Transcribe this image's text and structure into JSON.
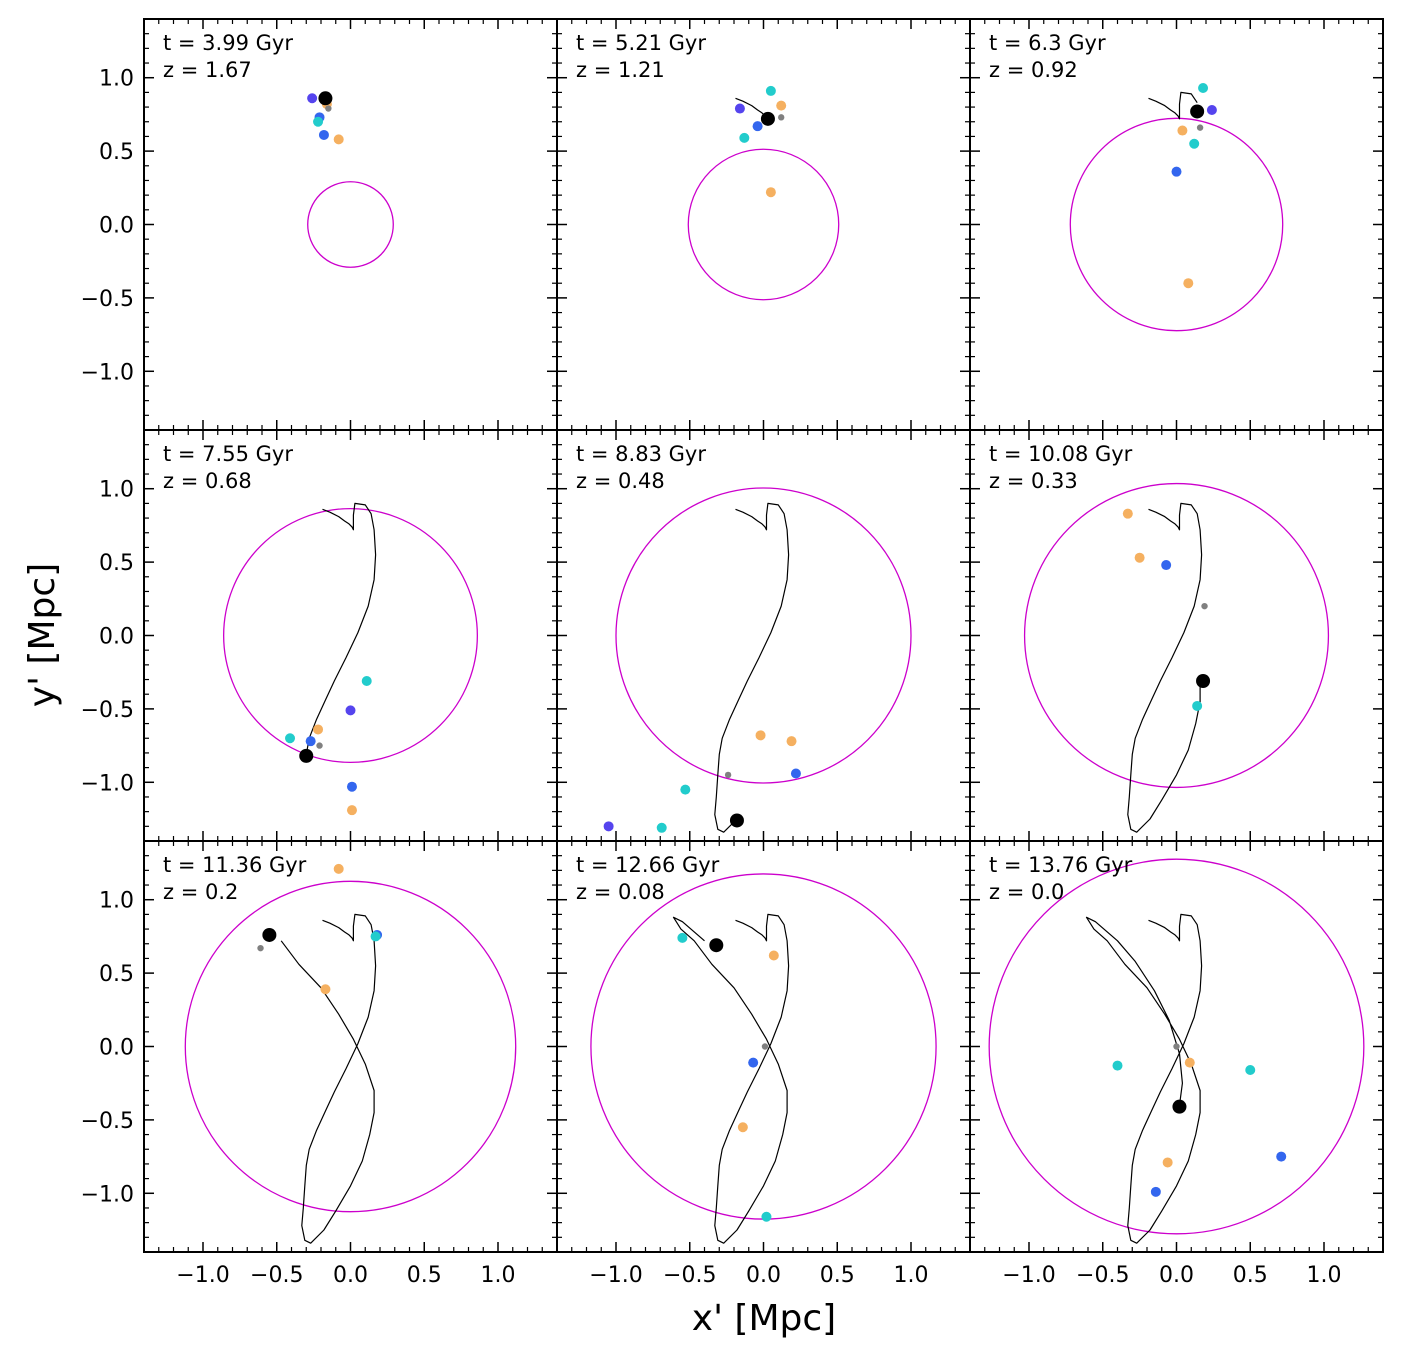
{
  "figure": {
    "x_axis_title": "x' [Mpc]",
    "y_axis_title": "y' [Mpc]"
  },
  "chart_data": {
    "type": "scatter",
    "grid": "3x3 small multiples, shared axes",
    "xlabel": "x' [Mpc]",
    "ylabel": "y' [Mpc]",
    "xlim": [
      -1.4,
      1.4
    ],
    "ylim": [
      -1.4,
      1.4
    ],
    "xticks": [
      -1.0,
      -0.5,
      0.0,
      0.5,
      1.0
    ],
    "yticks": [
      -1.0,
      -0.5,
      0.0,
      0.5,
      1.0
    ],
    "xtick_labels": [
      "−1.0",
      "−0.5",
      "0.0",
      "0.5",
      "1.0"
    ],
    "ytick_labels": [
      "−1.0",
      "−0.5",
      "0.0",
      "0.5",
      "1.0"
    ],
    "colors": {
      "circle": "#cc00cc",
      "track": "#000000",
      "main": "#000000",
      "gray": "#808080",
      "orange": "#f5b060",
      "blue": "#3366ee",
      "cyan": "#22cccc",
      "purple": "#5544ee"
    },
    "track": [
      [
        -0.19,
        0.86
      ],
      [
        -0.14,
        0.84
      ],
      [
        -0.08,
        0.81
      ],
      [
        -0.04,
        0.78
      ],
      [
        -0.01,
        0.76
      ],
      [
        0.01,
        0.74
      ],
      [
        0.02,
        0.72
      ],
      [
        0.02,
        0.75
      ],
      [
        0.02,
        0.82
      ],
      [
        0.03,
        0.9
      ],
      [
        0.1,
        0.89
      ],
      [
        0.14,
        0.83
      ],
      [
        0.16,
        0.72
      ],
      [
        0.17,
        0.55
      ],
      [
        0.16,
        0.38
      ],
      [
        0.12,
        0.2
      ],
      [
        0.05,
        0.02
      ],
      [
        -0.03,
        -0.15
      ],
      [
        -0.11,
        -0.31
      ],
      [
        -0.17,
        -0.44
      ],
      [
        -0.23,
        -0.57
      ],
      [
        -0.28,
        -0.7
      ],
      [
        -0.3,
        -0.81
      ],
      [
        -0.31,
        -0.95
      ],
      [
        -0.32,
        -1.1
      ],
      [
        -0.33,
        -1.22
      ],
      [
        -0.31,
        -1.32
      ],
      [
        -0.27,
        -1.34
      ],
      [
        -0.18,
        -1.25
      ],
      [
        -0.1,
        -1.12
      ],
      [
        0.0,
        -0.95
      ],
      [
        0.08,
        -0.78
      ],
      [
        0.13,
        -0.6
      ],
      [
        0.16,
        -0.45
      ],
      [
        0.16,
        -0.3
      ],
      [
        0.1,
        -0.12
      ],
      [
        0.02,
        0.05
      ],
      [
        -0.08,
        0.22
      ],
      [
        -0.2,
        0.4
      ],
      [
        -0.35,
        0.56
      ],
      [
        -0.47,
        0.72
      ],
      [
        -0.56,
        0.8
      ],
      [
        -0.61,
        0.88
      ],
      [
        -0.55,
        0.85
      ],
      [
        -0.4,
        0.72
      ],
      [
        -0.28,
        0.58
      ],
      [
        -0.15,
        0.38
      ],
      [
        -0.05,
        0.18
      ],
      [
        0.02,
        -0.05
      ],
      [
        0.04,
        -0.25
      ],
      [
        0.02,
        -0.4
      ]
    ],
    "panels": [
      {
        "time": "t = 3.99 Gyr",
        "redshift": "z = 1.67",
        "radius": 0.29,
        "track_end": 0,
        "main": [
          -0.17,
          0.86
        ],
        "points": [
          [
            -0.17,
            0.87,
            "cyan"
          ],
          [
            -0.26,
            0.86,
            "purple"
          ],
          [
            -0.21,
            0.73,
            "blue"
          ],
          [
            -0.22,
            0.7,
            "cyan"
          ],
          [
            -0.18,
            0.61,
            "blue"
          ],
          [
            -0.08,
            0.58,
            "orange"
          ],
          [
            -0.16,
            0.82,
            "orange"
          ],
          [
            -0.15,
            0.79,
            "gray"
          ]
        ]
      },
      {
        "time": "t = 5.21 Gyr",
        "redshift": "z = 1.21",
        "radius": 0.51,
        "track_end": 7,
        "main": [
          0.03,
          0.72
        ],
        "points": [
          [
            0.05,
            0.91,
            "cyan"
          ],
          [
            -0.16,
            0.79,
            "purple"
          ],
          [
            0.12,
            0.81,
            "orange"
          ],
          [
            0.12,
            0.73,
            "gray"
          ],
          [
            -0.04,
            0.67,
            "blue"
          ],
          [
            -0.13,
            0.59,
            "cyan"
          ],
          [
            0.05,
            0.22,
            "orange"
          ]
        ]
      },
      {
        "time": "t = 6.3 Gyr",
        "redshift": "z = 0.92",
        "radius": 0.72,
        "track_end": 11,
        "main": [
          0.14,
          0.77
        ],
        "points": [
          [
            0.18,
            0.93,
            "cyan"
          ],
          [
            0.24,
            0.78,
            "purple"
          ],
          [
            0.16,
            0.66,
            "gray"
          ],
          [
            0.04,
            0.64,
            "orange"
          ],
          [
            0.12,
            0.55,
            "cyan"
          ],
          [
            0.0,
            0.36,
            "blue"
          ],
          [
            0.08,
            -0.4,
            "orange"
          ]
        ]
      },
      {
        "time": "t = 7.55 Gyr",
        "redshift": "z = 0.68",
        "radius": 0.86,
        "track_end": 22,
        "main": [
          -0.3,
          -0.82
        ],
        "points": [
          [
            0.11,
            -0.31,
            "cyan"
          ],
          [
            0.0,
            -0.51,
            "purple"
          ],
          [
            -0.22,
            -0.64,
            "orange"
          ],
          [
            -0.41,
            -0.7,
            "cyan"
          ],
          [
            -0.27,
            -0.72,
            "blue"
          ],
          [
            -0.21,
            -0.75,
            "gray"
          ],
          [
            0.01,
            -1.03,
            "blue"
          ],
          [
            0.01,
            -1.19,
            "orange"
          ]
        ]
      },
      {
        "time": "t = 8.83 Gyr",
        "redshift": "z = 0.48",
        "radius": 1.0,
        "track_end": 28,
        "main": [
          -0.18,
          -1.26
        ],
        "points": [
          [
            -0.02,
            -0.68,
            "orange"
          ],
          [
            0.19,
            -0.72,
            "orange"
          ],
          [
            0.22,
            -0.94,
            "blue"
          ],
          [
            -0.24,
            -0.95,
            "gray"
          ],
          [
            -0.53,
            -1.05,
            "cyan"
          ],
          [
            -1.05,
            -1.3,
            "purple"
          ],
          [
            -0.69,
            -1.31,
            "cyan"
          ]
        ]
      },
      {
        "time": "t = 10.08 Gyr",
        "redshift": "z = 0.33",
        "radius": 1.03,
        "track_end": 34,
        "main": [
          0.18,
          -0.31
        ],
        "points": [
          [
            -0.33,
            0.83,
            "orange"
          ],
          [
            -0.25,
            0.53,
            "orange"
          ],
          [
            -0.07,
            0.48,
            "blue"
          ],
          [
            0.19,
            0.2,
            "gray"
          ],
          [
            0.14,
            -0.48,
            "cyan"
          ]
        ]
      },
      {
        "time": "t = 11.36 Gyr",
        "redshift": "z = 0.2",
        "radius": 1.12,
        "track_end": 40,
        "main": [
          -0.55,
          0.76
        ],
        "points": [
          [
            -0.08,
            1.21,
            "orange"
          ],
          [
            0.18,
            0.76,
            "blue"
          ],
          [
            0.17,
            0.75,
            "cyan"
          ],
          [
            -0.61,
            0.67,
            "gray"
          ],
          [
            -0.17,
            0.39,
            "orange"
          ]
        ]
      },
      {
        "time": "t = 12.66 Gyr",
        "redshift": "z = 0.08",
        "radius": 1.17,
        "track_end": 44,
        "main": [
          -0.32,
          0.69
        ],
        "points": [
          [
            -0.55,
            0.74,
            "cyan"
          ],
          [
            0.07,
            0.62,
            "orange"
          ],
          [
            0.01,
            0.0,
            "gray"
          ],
          [
            -0.07,
            -0.11,
            "blue"
          ],
          [
            -0.14,
            -0.55,
            "orange"
          ],
          [
            0.02,
            -1.16,
            "cyan"
          ]
        ]
      },
      {
        "time": "t = 13.76 Gyr",
        "redshift": "z = 0.0",
        "radius": 1.27,
        "track_end": 50,
        "main": [
          0.02,
          -0.41
        ],
        "points": [
          [
            0.0,
            0.0,
            "gray"
          ],
          [
            0.09,
            -0.11,
            "orange"
          ],
          [
            -0.4,
            -0.13,
            "cyan"
          ],
          [
            0.5,
            -0.16,
            "cyan"
          ],
          [
            -0.06,
            -0.79,
            "orange"
          ],
          [
            -0.14,
            -0.99,
            "blue"
          ],
          [
            0.71,
            -0.75,
            "blue"
          ]
        ]
      }
    ]
  }
}
